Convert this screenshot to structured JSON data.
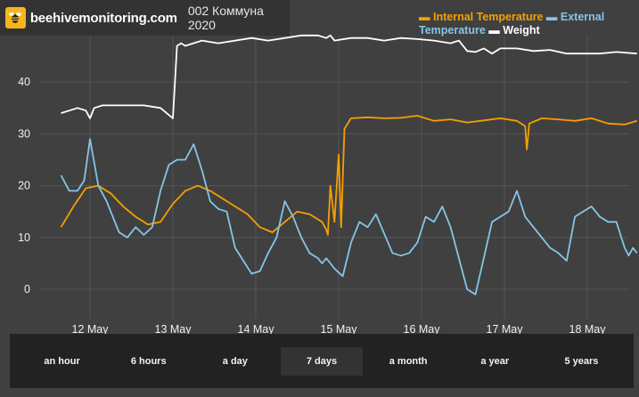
{
  "header": {
    "site": "beehivemonitoring.com",
    "hive_name": "002 Коммуна 2020"
  },
  "legend": {
    "items": [
      {
        "label": "Internal Temperature",
        "color": "#f5a000"
      },
      {
        "label": "External Temperature",
        "color": "#86c5e6"
      },
      {
        "label": "Weight",
        "color": "#ffffff"
      }
    ]
  },
  "ranges": {
    "selected": "7 days",
    "items": [
      "an hour",
      "6 hours",
      "a day",
      "7 days",
      "a month",
      "a year",
      "5 years"
    ]
  },
  "chart_data": {
    "type": "line",
    "title": "",
    "xlabel": "",
    "ylabel": "",
    "x_ticks": [
      "12 May",
      "13 May",
      "14 May",
      "15 May",
      "16 May",
      "17 May",
      "18 May"
    ],
    "y_ticks": [
      0,
      10,
      20,
      30,
      40
    ],
    "ylim": [
      -6,
      50
    ],
    "xlim": [
      0,
      6.95
    ],
    "grid": true,
    "legend_placement": "top-right",
    "series": [
      {
        "name": "Internal Temperature",
        "color": "#f5a000",
        "x": [
          0.0,
          0.15,
          0.3,
          0.45,
          0.6,
          0.75,
          0.9,
          1.05,
          1.2,
          1.35,
          1.5,
          1.65,
          1.8,
          1.95,
          2.1,
          2.25,
          2.4,
          2.55,
          2.7,
          2.85,
          3.0,
          3.15,
          3.2,
          3.22,
          3.25,
          3.3,
          3.35,
          3.38,
          3.42,
          3.5,
          3.7,
          3.9,
          4.1,
          4.3,
          4.5,
          4.7,
          4.9,
          5.1,
          5.3,
          5.5,
          5.6,
          5.62,
          5.65,
          5.8,
          6.0,
          6.2,
          6.4,
          6.6,
          6.8,
          6.95
        ],
        "values": [
          12,
          16,
          19.5,
          20,
          18.5,
          16,
          14,
          12.5,
          13,
          16.5,
          19,
          20,
          19,
          17.5,
          16,
          14.5,
          12,
          11,
          13,
          15,
          14.5,
          13,
          11.5,
          10.5,
          20,
          13,
          26,
          12,
          31,
          33,
          33.2,
          33,
          33.1,
          33.5,
          32.5,
          32.8,
          32.2,
          32.6,
          33,
          32.5,
          31.5,
          27,
          32,
          33,
          32.8,
          32.5,
          33,
          32,
          31.8,
          32.5
        ]
      },
      {
        "name": "External Temperature",
        "color": "#86c5e6",
        "x": [
          0.0,
          0.1,
          0.2,
          0.28,
          0.35,
          0.45,
          0.55,
          0.7,
          0.8,
          0.9,
          1.0,
          1.1,
          1.2,
          1.3,
          1.4,
          1.5,
          1.6,
          1.7,
          1.8,
          1.9,
          2.0,
          2.1,
          2.3,
          2.4,
          2.5,
          2.6,
          2.7,
          2.8,
          2.9,
          3.0,
          3.1,
          3.15,
          3.2,
          3.3,
          3.4,
          3.5,
          3.6,
          3.7,
          3.8,
          4.0,
          4.1,
          4.2,
          4.3,
          4.4,
          4.5,
          4.6,
          4.7,
          4.8,
          4.9,
          5.0,
          5.1,
          5.2,
          5.3,
          5.4,
          5.5,
          5.6,
          5.7,
          5.8,
          5.9,
          6.0,
          6.1,
          6.2,
          6.3,
          6.4,
          6.5,
          6.6,
          6.7,
          6.8,
          6.85,
          6.9,
          6.95
        ],
        "values": [
          22,
          19,
          19,
          21,
          29,
          20,
          17,
          11,
          10,
          12,
          10.5,
          12,
          19,
          24,
          25,
          25,
          28,
          23,
          17,
          15.5,
          15,
          8,
          3,
          3.5,
          7,
          10,
          17,
          14,
          10,
          7,
          6,
          5,
          6,
          4,
          2.5,
          9,
          13,
          12,
          14.5,
          7,
          6.5,
          7,
          9,
          14,
          13,
          16,
          12,
          6,
          0,
          -1,
          6,
          13,
          14,
          15,
          19,
          14,
          12,
          10,
          8,
          7,
          5.5,
          14,
          15,
          16,
          14,
          13,
          13,
          8,
          6.5,
          8,
          7
        ]
      },
      {
        "name": "Weight",
        "color": "#ffffff",
        "x": [
          0.0,
          0.1,
          0.2,
          0.3,
          0.35,
          0.4,
          0.5,
          0.7,
          1.0,
          1.2,
          1.35,
          1.4,
          1.45,
          1.5,
          1.7,
          1.9,
          2.1,
          2.3,
          2.5,
          2.7,
          2.9,
          3.1,
          3.2,
          3.25,
          3.3,
          3.5,
          3.7,
          3.9,
          4.1,
          4.3,
          4.5,
          4.7,
          4.8,
          4.9,
          5.0,
          5.1,
          5.2,
          5.3,
          5.5,
          5.7,
          5.9,
          6.1,
          6.3,
          6.5,
          6.7,
          6.95
        ],
        "values": [
          34,
          34.5,
          35,
          34.5,
          33,
          35,
          35.5,
          35.5,
          35.5,
          35,
          33,
          47,
          47.5,
          47,
          48,
          47.5,
          48,
          48.5,
          48,
          48.5,
          49,
          49,
          48.5,
          49,
          48,
          48.5,
          48.5,
          48,
          48.5,
          48.3,
          48,
          47.5,
          48,
          46,
          45.8,
          46.5,
          45.5,
          46.5,
          46.5,
          46,
          46.2,
          45.5,
          45.5,
          45.5,
          45.8,
          45.5
        ]
      }
    ]
  }
}
